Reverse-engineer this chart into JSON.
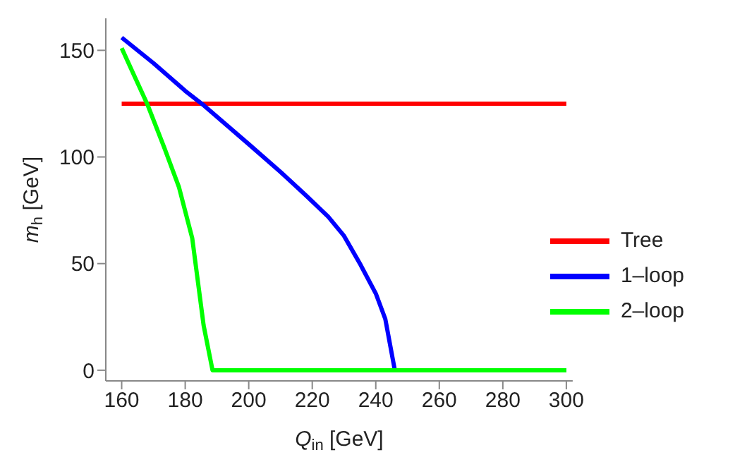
{
  "chart_data": {
    "type": "line",
    "xlabel": "Q$_{in}$ [GeV]",
    "ylabel": "m$_{h}$ [GeV]",
    "xlim": [
      155,
      302
    ],
    "ylim": [
      -5,
      165
    ],
    "xticks": [
      160,
      180,
      200,
      220,
      240,
      260,
      280,
      300
    ],
    "yticks": [
      0,
      50,
      100,
      150
    ],
    "legend": "right",
    "marker": "none",
    "line_style": "solid",
    "series": [
      {
        "name": "Tree",
        "color": "#ff0000",
        "x": [
          160,
          300
        ],
        "values": [
          125,
          125
        ]
      },
      {
        "name": "1–loop",
        "color": "#0000ff",
        "x": [
          160,
          170,
          180,
          186,
          200,
          210,
          218,
          225,
          230,
          235,
          240,
          243,
          246,
          300
        ],
        "values": [
          156,
          144,
          131,
          124,
          106,
          93,
          82,
          72,
          63,
          50,
          36,
          24,
          0,
          0
        ]
      },
      {
        "name": "2–loop",
        "color": "#00ff00",
        "x": [
          160,
          164,
          168,
          173.5,
          178,
          182.2,
          185.8,
          188.6,
          300
        ],
        "values": [
          151,
          138,
          125,
          104,
          86,
          62,
          21,
          0,
          0
        ]
      }
    ]
  }
}
